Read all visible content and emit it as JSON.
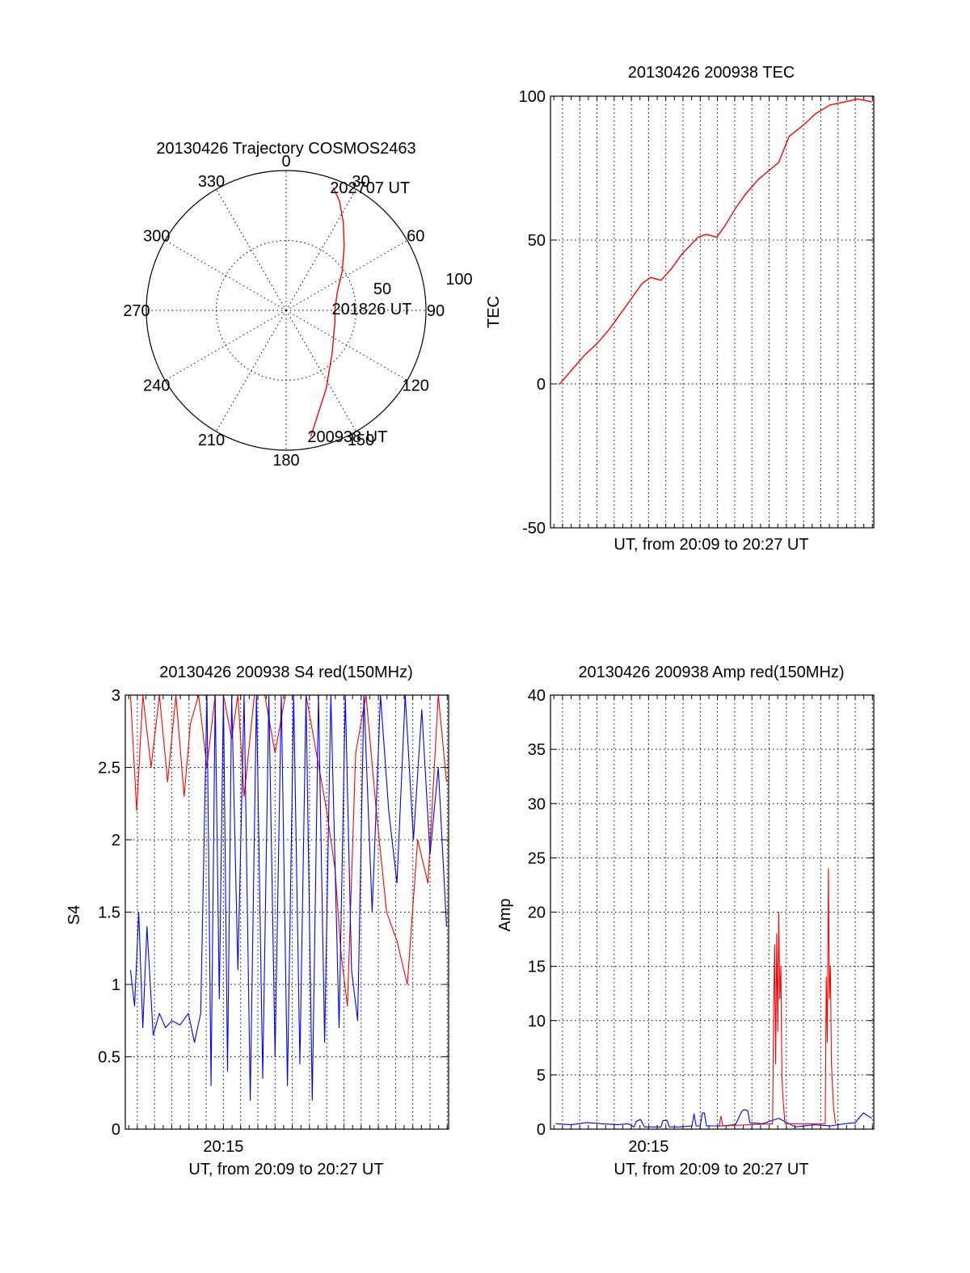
{
  "figure": {
    "date": "20130426",
    "colors": {
      "red": "#ff0000",
      "blue": "#0000ff",
      "axis": "#000000",
      "background": "#ffffff"
    }
  },
  "chart_data": [
    {
      "id": "trajectory",
      "type": "polar",
      "title": "20130426 Trajectory COSMOS2463",
      "azimuth_labels": [
        "0",
        "30",
        "60",
        "90",
        "120",
        "150",
        "180",
        "210",
        "240",
        "270",
        "300",
        "330"
      ],
      "radial_ticks": [
        {
          "value": 50,
          "label": "50"
        },
        {
          "value": 100,
          "label": "100"
        }
      ],
      "radial_range": [
        0,
        100
      ],
      "grid": true,
      "series": [
        {
          "color": "#ff0000",
          "points": [
            {
              "az": 169.0,
              "r": 92
            },
            {
              "az": 153.0,
              "r": 63
            },
            {
              "az": 133.0,
              "r": 45
            },
            {
              "az": 105.0,
              "r": 36
            },
            {
              "az": 88.0,
              "r": 35
            },
            {
              "az": 70.0,
              "r": 39
            },
            {
              "az": 55.0,
              "r": 49
            },
            {
              "az": 42.0,
              "r": 62
            },
            {
              "az": 33.0,
              "r": 75
            },
            {
              "az": 26.0,
              "r": 87
            },
            {
              "az": 21.0,
              "r": 94
            }
          ]
        }
      ],
      "annotations": [
        {
          "text": "202707 UT",
          "az": 21.0,
          "r": 94
        },
        {
          "text": "201826 UT",
          "az": 88.0,
          "r": 35
        },
        {
          "text": "200938 UT",
          "az": 169.0,
          "r": 92
        }
      ]
    },
    {
      "id": "tec",
      "type": "line",
      "title": "20130426 200938 TEC",
      "xlabel": "UT, from 20:09 to 20:27 UT",
      "ylabel": "TEC",
      "xlim": [
        20.155,
        20.468
      ],
      "ylim": [
        -50,
        100
      ],
      "yticks": [
        -50,
        0,
        50,
        100
      ],
      "grid": true,
      "series": [
        {
          "color": "#ff0000",
          "x": [
            20.164,
            20.176,
            20.188,
            20.2,
            20.212,
            20.224,
            20.236,
            20.244,
            20.252,
            20.262,
            20.272,
            20.282,
            20.29,
            20.298,
            20.306,
            20.316,
            20.324,
            20.334,
            20.344,
            20.356,
            20.366,
            20.376,
            20.386,
            20.4,
            20.412,
            20.426,
            20.44,
            20.452,
            20.46,
            20.466
          ],
          "y": [
            0,
            5,
            10,
            14,
            19,
            25,
            31,
            35,
            37,
            36,
            40,
            45,
            48,
            51,
            52,
            51,
            55,
            61,
            66,
            71,
            74,
            77,
            86,
            90,
            94,
            97,
            98,
            99,
            98.5,
            98
          ]
        }
      ]
    },
    {
      "id": "s4",
      "type": "line",
      "title": "20130426 200938 S4 red(150MHz)",
      "xlabel": "UT, from 20:09 to 20:27 UT",
      "ylabel": "S4",
      "xlim": [
        20.155,
        20.468
      ],
      "ylim": [
        0,
        3
      ],
      "yticks": [
        0,
        0.5,
        1,
        1.5,
        2,
        2.5,
        3
      ],
      "ytick_labels": [
        "0",
        "0.5",
        "1",
        "1.5",
        "2",
        "2.5",
        "3"
      ],
      "xtick": {
        "value": 20.25,
        "label": "20:15"
      },
      "grid": true,
      "series": [
        {
          "color": "#ff0000",
          "x": [
            20.16,
            20.166,
            20.172,
            20.18,
            20.188,
            20.196,
            20.204,
            20.212,
            20.218,
            20.226,
            20.234,
            20.242,
            20.25,
            20.258,
            20.264,
            20.27,
            20.28,
            20.29,
            20.3,
            20.31,
            20.32,
            20.33,
            20.34,
            20.35,
            20.358,
            20.364,
            20.37,
            20.378,
            20.388,
            20.398,
            20.408,
            20.418,
            20.428,
            20.438,
            20.448,
            20.458,
            20.466
          ],
          "y": [
            3.0,
            2.2,
            3.0,
            2.5,
            3.0,
            2.4,
            3.0,
            2.3,
            2.8,
            3.0,
            2.5,
            3.0,
            3.0,
            2.7,
            3.0,
            2.3,
            3.0,
            3.0,
            2.6,
            3.0,
            3.0,
            3.0,
            2.6,
            2.2,
            1.8,
            1.2,
            0.85,
            2.6,
            3.0,
            2.2,
            1.5,
            1.3,
            1.0,
            2.0,
            1.7,
            3.0,
            2.4
          ]
        },
        {
          "color": "#0000ff",
          "x": [
            20.16,
            20.164,
            20.168,
            20.172,
            20.176,
            20.182,
            20.188,
            20.194,
            20.2,
            20.208,
            20.216,
            20.222,
            20.228,
            20.234,
            20.238,
            20.242,
            20.246,
            20.25,
            20.254,
            20.258,
            20.264,
            20.27,
            20.276,
            20.282,
            20.288,
            20.294,
            20.3,
            20.306,
            20.312,
            20.318,
            20.324,
            20.33,
            20.336,
            20.342,
            20.348,
            20.354,
            20.362,
            20.368,
            20.374,
            20.38,
            20.386,
            20.394,
            20.402,
            20.41,
            20.418,
            20.426,
            20.434,
            20.442,
            20.45,
            20.458,
            20.466
          ],
          "y": [
            1.1,
            0.85,
            1.5,
            0.7,
            1.4,
            0.65,
            0.8,
            0.7,
            0.75,
            0.72,
            0.8,
            0.6,
            0.8,
            3.0,
            0.3,
            3.0,
            0.9,
            3.0,
            0.4,
            3.0,
            1.1,
            3.0,
            0.2,
            3.0,
            0.35,
            3.0,
            0.5,
            3.0,
            0.3,
            3.0,
            0.45,
            3.0,
            0.2,
            3.0,
            0.6,
            3.0,
            0.7,
            3.0,
            1.1,
            0.75,
            3.0,
            1.5,
            3.0,
            2.2,
            1.7,
            3.0,
            2.0,
            2.9,
            1.9,
            2.5,
            1.4
          ]
        }
      ]
    },
    {
      "id": "amp",
      "type": "line",
      "title": "20130426 200938 Amp red(150MHz)",
      "xlabel": "UT, from 20:09 to 20:27 UT",
      "ylabel": "Amp",
      "xlim": [
        20.155,
        20.468
      ],
      "ylim": [
        0,
        40
      ],
      "yticks": [
        0,
        5,
        10,
        15,
        20,
        25,
        30,
        35,
        40
      ],
      "xtick": {
        "value": 20.25,
        "label": "20:15"
      },
      "grid": true,
      "series": [
        {
          "color": "#0000ff",
          "x": [
            20.16,
            20.175,
            20.19,
            20.205,
            20.22,
            20.23,
            20.236,
            20.238,
            20.242,
            20.246,
            20.262,
            20.264,
            20.268,
            20.27,
            20.28,
            20.292,
            20.294,
            20.296,
            20.3,
            20.302,
            20.304,
            20.306,
            20.32,
            20.334,
            20.34,
            20.342,
            20.346,
            20.348,
            20.36,
            20.376,
            20.392,
            20.41,
            20.426,
            20.44,
            20.45,
            20.458,
            20.466
          ],
          "y": [
            0.5,
            0.4,
            0.6,
            0.5,
            0.4,
            0.5,
            0.2,
            0.7,
            0.9,
            0.2,
            0.2,
            0.8,
            0.8,
            0.2,
            0.2,
            0.3,
            1.4,
            0.3,
            0.3,
            1.5,
            1.5,
            0.3,
            0.3,
            0.4,
            1.6,
            1.8,
            1.7,
            0.6,
            0.5,
            1.0,
            0.2,
            0.4,
            0.3,
            0.5,
            0.6,
            1.5,
            1.0
          ]
        },
        {
          "color": "#ff0000",
          "x": [
            20.318,
            20.32,
            20.322,
            20.37,
            20.371,
            20.372,
            20.373,
            20.374,
            20.375,
            20.376,
            20.377,
            20.378,
            20.379,
            20.38,
            20.382,
            20.421,
            20.422,
            20.423,
            20.424,
            20.425,
            20.426,
            20.427,
            20.428,
            20.429,
            20.431
          ],
          "y": [
            0.2,
            1.2,
            0.3,
            0.5,
            10,
            17,
            6,
            18,
            9,
            20,
            12,
            15,
            5,
            3,
            0.5,
            0.5,
            14,
            8,
            24,
            12,
            15,
            6,
            4,
            2,
            0.5
          ]
        }
      ]
    }
  ]
}
